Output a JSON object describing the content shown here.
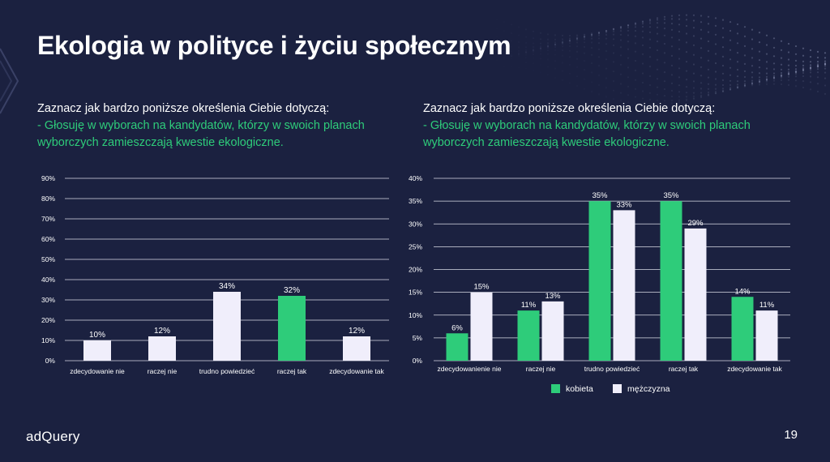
{
  "slide": {
    "title": "Ekologia w polityce i życiu społecznym",
    "logo": "adQuery",
    "page_number": "19",
    "colors": {
      "background": "#1b2140",
      "accent": "#2ecc7a",
      "light_bar": "#f0eefb",
      "gridline": "#d9dbe6"
    }
  },
  "questions": {
    "left": {
      "line1": "Zaznacz jak bardzo poniższe określenia Ciebie dotyczą:",
      "line2": "- Głosuję w wyborach na kandydatów, którzy w swoich planach wyborczych zamieszczają kwestie ekologiczne."
    },
    "right": {
      "line1": "Zaznacz jak bardzo poniższe określenia Ciebie dotyczą:",
      "line2": "- Głosuję w wyborach na kandydatów, którzy w swoich planach wyborczych zamieszczają kwestie ekologiczne."
    }
  },
  "chart_data": [
    {
      "type": "bar",
      "categories": [
        "zdecydowanie nie",
        "raczej nie",
        "trudno powiedzieć",
        "raczej tak",
        "zdecydowanie tak"
      ],
      "values": [
        10,
        12,
        34,
        32,
        12
      ],
      "data_labels": [
        "10%",
        "12%",
        "34%",
        "32%",
        "12%"
      ],
      "highlight_index": 3,
      "ylim": [
        0,
        90
      ],
      "yticks": [
        "0%",
        "10%",
        "20%",
        "30%",
        "40%",
        "50%",
        "60%",
        "70%",
        "80%",
        "90%"
      ],
      "grid": true
    },
    {
      "type": "bar",
      "categories": [
        "zdecydowanienie nie",
        "raczej nie",
        "trudno powiedzieć",
        "raczej tak",
        "zdecydowanie tak"
      ],
      "series": [
        {
          "name": "kobieta",
          "values": [
            6,
            11,
            35,
            35,
            14
          ],
          "data_labels": [
            "6%",
            "11%",
            "35%",
            "35%",
            "14%"
          ],
          "color": "#2ecc7a"
        },
        {
          "name": "mężczyzna",
          "values": [
            15,
            13,
            33,
            29,
            11
          ],
          "data_labels": [
            "15%",
            "13%",
            "33%",
            "29%",
            "11%"
          ],
          "color": "#f0eefb"
        }
      ],
      "ylim": [
        0,
        40
      ],
      "yticks": [
        "0%",
        "5%",
        "10%",
        "15%",
        "20%",
        "25%",
        "30%",
        "35%",
        "40%"
      ],
      "grid": true,
      "legend": "bottom-center"
    }
  ]
}
